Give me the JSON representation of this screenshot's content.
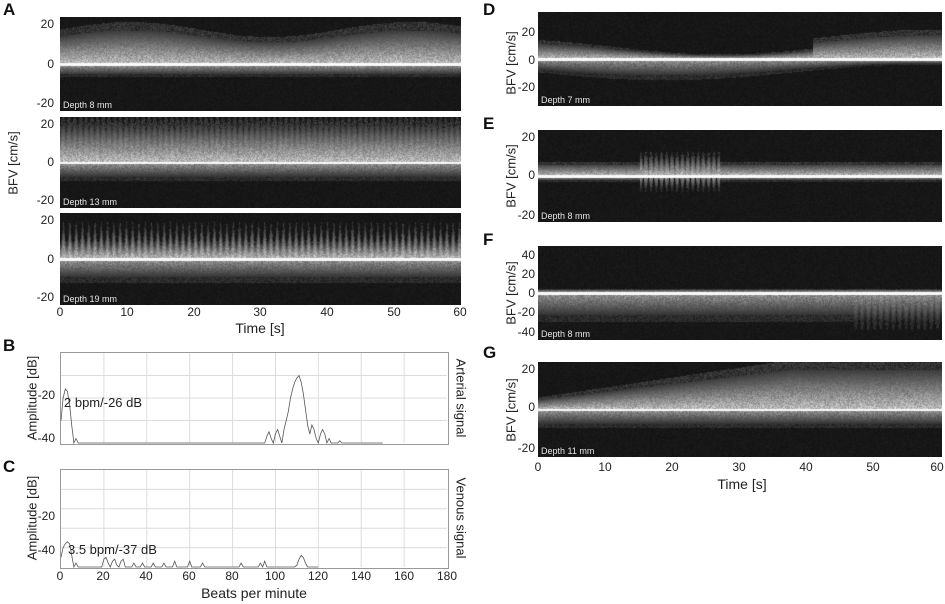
{
  "panel_labels": {
    "a": "A",
    "b": "B",
    "c": "C",
    "d": "D",
    "e": "E",
    "f": "F",
    "g": "G"
  },
  "bfv_label": "BFV [cm/s]",
  "time_label": "Time [s]",
  "amplitude_label": "Amplitude [dB]",
  "bpm_label": "Beats per minute",
  "arterial_label": "Arterial signal",
  "venous_label": "Venous signal",
  "chart_data": [
    {
      "panel": "A1",
      "type": "heatmap",
      "depth": "Depth 8 mm",
      "yticks": [
        "20",
        "0",
        "-20"
      ],
      "ylim": [
        -25,
        25
      ]
    },
    {
      "panel": "A2",
      "type": "heatmap",
      "depth": "Depth 13 mm",
      "yticks": [
        "20",
        "0",
        "-20"
      ],
      "ylim": [
        -25,
        25
      ]
    },
    {
      "panel": "A3",
      "type": "heatmap",
      "depth": "Depth 19 mm",
      "yticks": [
        "20",
        "0",
        "-20"
      ],
      "ylim": [
        -25,
        25
      ],
      "xlabel": "Time [s]",
      "xticks": [
        "0",
        "10",
        "20",
        "30",
        "40",
        "50",
        "60"
      ],
      "xlim": [
        0,
        60
      ]
    },
    {
      "panel": "B",
      "type": "line",
      "xlabel": "",
      "ylabel": "Amplitude [dB]",
      "side_label": "Arterial signal",
      "yticks": [
        "-20",
        "-40"
      ],
      "ylim": [
        -50,
        -10
      ],
      "xlim": [
        0,
        180
      ],
      "annotation": "2 bpm/-26 dB",
      "x": [
        0,
        1,
        2,
        3,
        4,
        5,
        6,
        7,
        8,
        9,
        10,
        11,
        12,
        13,
        14,
        15,
        16,
        17,
        18,
        19,
        20,
        21,
        22,
        23,
        24,
        25,
        26,
        27,
        28,
        29,
        30,
        31,
        32,
        33,
        34,
        35,
        36,
        37,
        38,
        39,
        40,
        41,
        42,
        43,
        44,
        45,
        46,
        47,
        48,
        49,
        50,
        51,
        52,
        53,
        54,
        55,
        56,
        57,
        58,
        59,
        60,
        61,
        62,
        63,
        64,
        65,
        66,
        67,
        68,
        69,
        70,
        71,
        72,
        73,
        74,
        75,
        76,
        77,
        78,
        79,
        80,
        81,
        82,
        83,
        84,
        85,
        86,
        87,
        88,
        89,
        90,
        91,
        92,
        93,
        94,
        95,
        96,
        97,
        98,
        99,
        100,
        101,
        102,
        103,
        104,
        105,
        106,
        107,
        108,
        109,
        110,
        111,
        112,
        113,
        114,
        115,
        116,
        117,
        118,
        119,
        120,
        121,
        122,
        123,
        124,
        125,
        126,
        127,
        128,
        129,
        130,
        131,
        132,
        133,
        134,
        135,
        136,
        137,
        138,
        139,
        140,
        141,
        142,
        143,
        144,
        145,
        146,
        147,
        148,
        149,
        150
      ],
      "y": [
        -40,
        -30,
        -26,
        -27,
        -33,
        -42,
        -50,
        -48,
        -50,
        -50,
        -50,
        -50,
        -50,
        -50,
        -50,
        -50,
        -50,
        -50,
        -50,
        -50,
        -50,
        -50,
        -50,
        -50,
        -50,
        -50,
        -50,
        -50,
        -50,
        -50,
        -50,
        -50,
        -50,
        -50,
        -50,
        -50,
        -50,
        -50,
        -50,
        -50,
        -50,
        -50,
        -50,
        -50,
        -50,
        -50,
        -50,
        -50,
        -50,
        -50,
        -50,
        -50,
        -50,
        -50,
        -50,
        -50,
        -50,
        -50,
        -50,
        -50,
        -50,
        -50,
        -50,
        -50,
        -50,
        -50,
        -50,
        -50,
        -50,
        -50,
        -50,
        -50,
        -50,
        -50,
        -50,
        -50,
        -50,
        -50,
        -50,
        -50,
        -50,
        -50,
        -50,
        -50,
        -50,
        -50,
        -50,
        -50,
        -50,
        -50,
        -50,
        -50,
        -50,
        -50,
        -50,
        -50,
        -47,
        -45,
        -48,
        -50,
        -46,
        -44,
        -47,
        -50,
        -44,
        -40,
        -36,
        -30,
        -26,
        -23,
        -21,
        -20,
        -23,
        -28,
        -35,
        -42,
        -46,
        -42,
        -44,
        -48,
        -50,
        -46,
        -44,
        -46,
        -50,
        -48,
        -50,
        -50,
        -50,
        -50,
        -49,
        -50,
        -50,
        -50,
        -50,
        -50,
        -50,
        -50,
        -50,
        -50,
        -50,
        -50,
        -50,
        -50,
        -50,
        -50,
        -50,
        -50,
        -50,
        -50,
        -50
      ]
    },
    {
      "panel": "C",
      "type": "line",
      "xlabel": "Beats per minute",
      "ylabel": "Amplitude [dB]",
      "side_label": "Venous signal",
      "yticks": [
        "-20",
        "-40"
      ],
      "ylim": [
        -50,
        0
      ],
      "xticks": [
        "0",
        "20",
        "40",
        "60",
        "80",
        "100",
        "120",
        "140",
        "160",
        "180"
      ],
      "xlim": [
        0,
        180
      ],
      "annotation": "3.5 bpm/-37 dB",
      "x": [
        0,
        1,
        2,
        3,
        4,
        5,
        6,
        7,
        8,
        9,
        10,
        11,
        12,
        13,
        14,
        15,
        16,
        17,
        18,
        19,
        20,
        21,
        22,
        23,
        24,
        25,
        26,
        27,
        28,
        29,
        30,
        31,
        32,
        33,
        34,
        35,
        36,
        37,
        38,
        39,
        40,
        41,
        42,
        43,
        44,
        45,
        46,
        47,
        48,
        49,
        50,
        51,
        52,
        53,
        54,
        55,
        56,
        57,
        58,
        59,
        60,
        61,
        62,
        63,
        64,
        65,
        66,
        67,
        68,
        69,
        70,
        71,
        72,
        73,
        74,
        75,
        76,
        77,
        78,
        79,
        80,
        81,
        82,
        83,
        84,
        85,
        86,
        87,
        88,
        89,
        90,
        91,
        92,
        93,
        94,
        95,
        96,
        97,
        98,
        99,
        100,
        101,
        102,
        103,
        104,
        105,
        106,
        107,
        108,
        109,
        110,
        111,
        112,
        113,
        114,
        115,
        116,
        117,
        118,
        119,
        120
      ],
      "y": [
        -45,
        -40,
        -38,
        -37,
        -38,
        -44,
        -50,
        -48,
        -50,
        -50,
        -50,
        -50,
        -50,
        -50,
        -50,
        -50,
        -50,
        -50,
        -50,
        -50,
        -46,
        -45,
        -48,
        -50,
        -47,
        -46,
        -49,
        -50,
        -47,
        -46,
        -50,
        -50,
        -50,
        -50,
        -48,
        -50,
        -50,
        -50,
        -48,
        -50,
        -50,
        -50,
        -50,
        -48,
        -50,
        -50,
        -50,
        -50,
        -48,
        -50,
        -50,
        -50,
        -50,
        -47,
        -50,
        -50,
        -50,
        -50,
        -50,
        -50,
        -47,
        -50,
        -50,
        -50,
        -50,
        -50,
        -48,
        -50,
        -50,
        -50,
        -50,
        -50,
        -50,
        -50,
        -50,
        -50,
        -50,
        -50,
        -50,
        -50,
        -50,
        -50,
        -50,
        -50,
        -48,
        -50,
        -50,
        -50,
        -50,
        -50,
        -50,
        -50,
        -50,
        -48,
        -50,
        -47,
        -50,
        -50,
        -50,
        -50,
        -50,
        -50,
        -50,
        -50,
        -50,
        -50,
        -50,
        -50,
        -50,
        -50,
        -49,
        -46,
        -44,
        -45,
        -48,
        -50,
        -50,
        -50,
        -50,
        -50,
        -50
      ]
    },
    {
      "panel": "D",
      "type": "heatmap",
      "depth": "Depth 7 mm",
      "yticks": [
        "20",
        "0",
        "-20"
      ],
      "ylim": [
        -28,
        28
      ]
    },
    {
      "panel": "E",
      "type": "heatmap",
      "depth": "Depth 8 mm",
      "yticks": [
        "20",
        "0",
        "-20"
      ],
      "ylim": [
        -25,
        25
      ]
    },
    {
      "panel": "F",
      "type": "heatmap",
      "depth": "Depth 8 mm",
      "yticks": [
        "40",
        "20",
        "0",
        "-20",
        "-40"
      ],
      "ylim": [
        -45,
        45
      ]
    },
    {
      "panel": "G",
      "type": "heatmap",
      "depth": "Depth 11 mm",
      "yticks": [
        "20",
        "0",
        "-20"
      ],
      "ylim": [
        -25,
        25
      ],
      "xlabel": "Time [s]",
      "xticks": [
        "0",
        "10",
        "20",
        "30",
        "40",
        "50",
        "60"
      ],
      "xlim": [
        0,
        60
      ]
    }
  ]
}
